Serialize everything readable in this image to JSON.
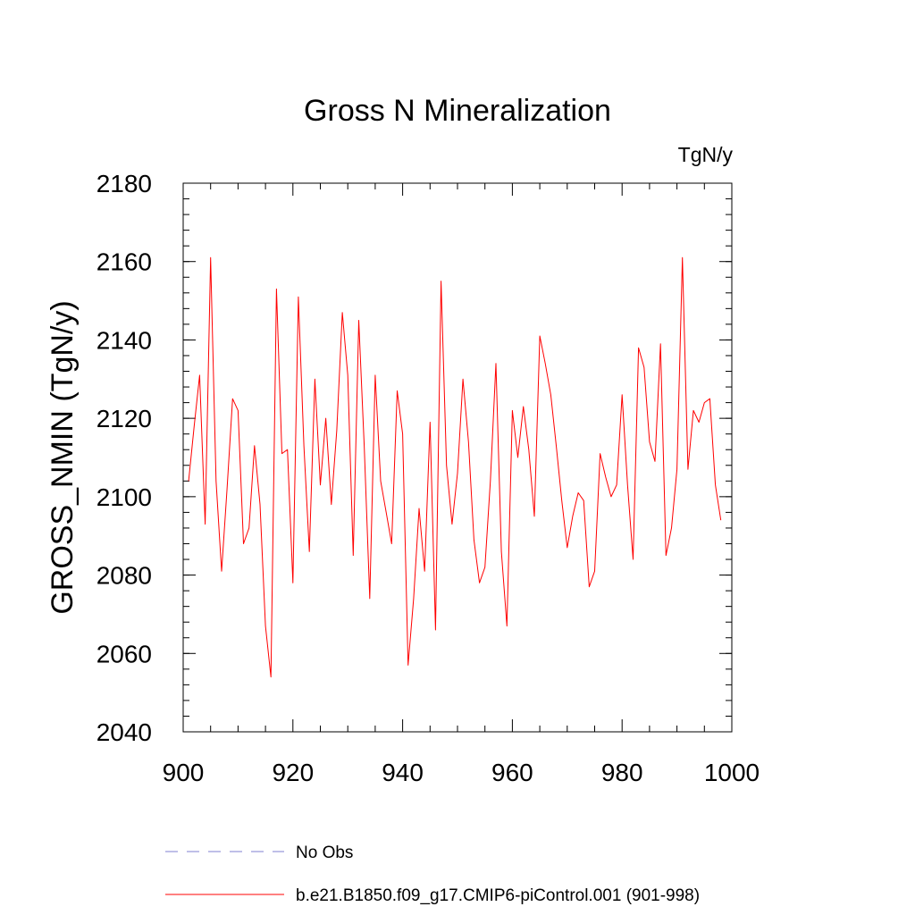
{
  "chart_data": {
    "type": "line",
    "title": "Gross N Mineralization",
    "units_label": "TgN/y",
    "xlabel": "",
    "ylabel": "GROSS_NMIN  (TgN/y)",
    "xlim": [
      900,
      1000
    ],
    "ylim": [
      2040,
      2180
    ],
    "xticks": [
      900,
      920,
      940,
      960,
      980,
      1000
    ],
    "yticks": [
      2040,
      2060,
      2080,
      2100,
      2120,
      2140,
      2160,
      2180
    ],
    "x_minor_step": 5,
    "y_minor_step": 4,
    "grid": false,
    "legend_position": "bottom",
    "series": [
      {
        "name": "No Obs",
        "color": "#7f7fd0",
        "style": "dashed",
        "x": [],
        "values": []
      },
      {
        "name": "b.e21.B1850.f09_g17.CMIP6-piControl.001 (901-998)",
        "color": "#ff0000",
        "style": "solid",
        "x": [
          901,
          902,
          903,
          904,
          905,
          906,
          907,
          908,
          909,
          910,
          911,
          912,
          913,
          914,
          915,
          916,
          917,
          918,
          919,
          920,
          921,
          922,
          923,
          924,
          925,
          926,
          927,
          928,
          929,
          930,
          931,
          932,
          933,
          934,
          935,
          936,
          937,
          938,
          939,
          940,
          941,
          942,
          943,
          944,
          945,
          946,
          947,
          948,
          949,
          950,
          951,
          952,
          953,
          954,
          955,
          956,
          957,
          958,
          959,
          960,
          961,
          962,
          963,
          964,
          965,
          966,
          967,
          968,
          969,
          970,
          971,
          972,
          973,
          974,
          975,
          976,
          977,
          978,
          979,
          980,
          981,
          982,
          983,
          984,
          985,
          986,
          987,
          988,
          989,
          990,
          991,
          992,
          993,
          994,
          995,
          996,
          997,
          998
        ],
        "values": [
          2104,
          2118,
          2131,
          2093,
          2161,
          2104,
          2081,
          2102,
          2125,
          2122,
          2088,
          2092,
          2113,
          2098,
          2067,
          2054,
          2153,
          2111,
          2112,
          2078,
          2151,
          2113,
          2086,
          2130,
          2103,
          2120,
          2098,
          2117,
          2147,
          2131,
          2085,
          2145,
          2113,
          2074,
          2131,
          2104,
          2096,
          2088,
          2127,
          2116,
          2057,
          2074,
          2097,
          2081,
          2119,
          2066,
          2155,
          2108,
          2093,
          2106,
          2130,
          2114,
          2089,
          2078,
          2082,
          2104,
          2134,
          2086,
          2067,
          2122,
          2110,
          2123,
          2112,
          2095,
          2141,
          2134,
          2126,
          2113,
          2099,
          2087,
          2095,
          2101,
          2099,
          2077,
          2081,
          2111,
          2105,
          2100,
          2103,
          2126,
          2103,
          2084,
          2138,
          2133,
          2114,
          2109,
          2139,
          2085,
          2092,
          2107,
          2161,
          2107,
          2122,
          2119,
          2124,
          2125,
          2103,
          2094
        ]
      }
    ]
  }
}
